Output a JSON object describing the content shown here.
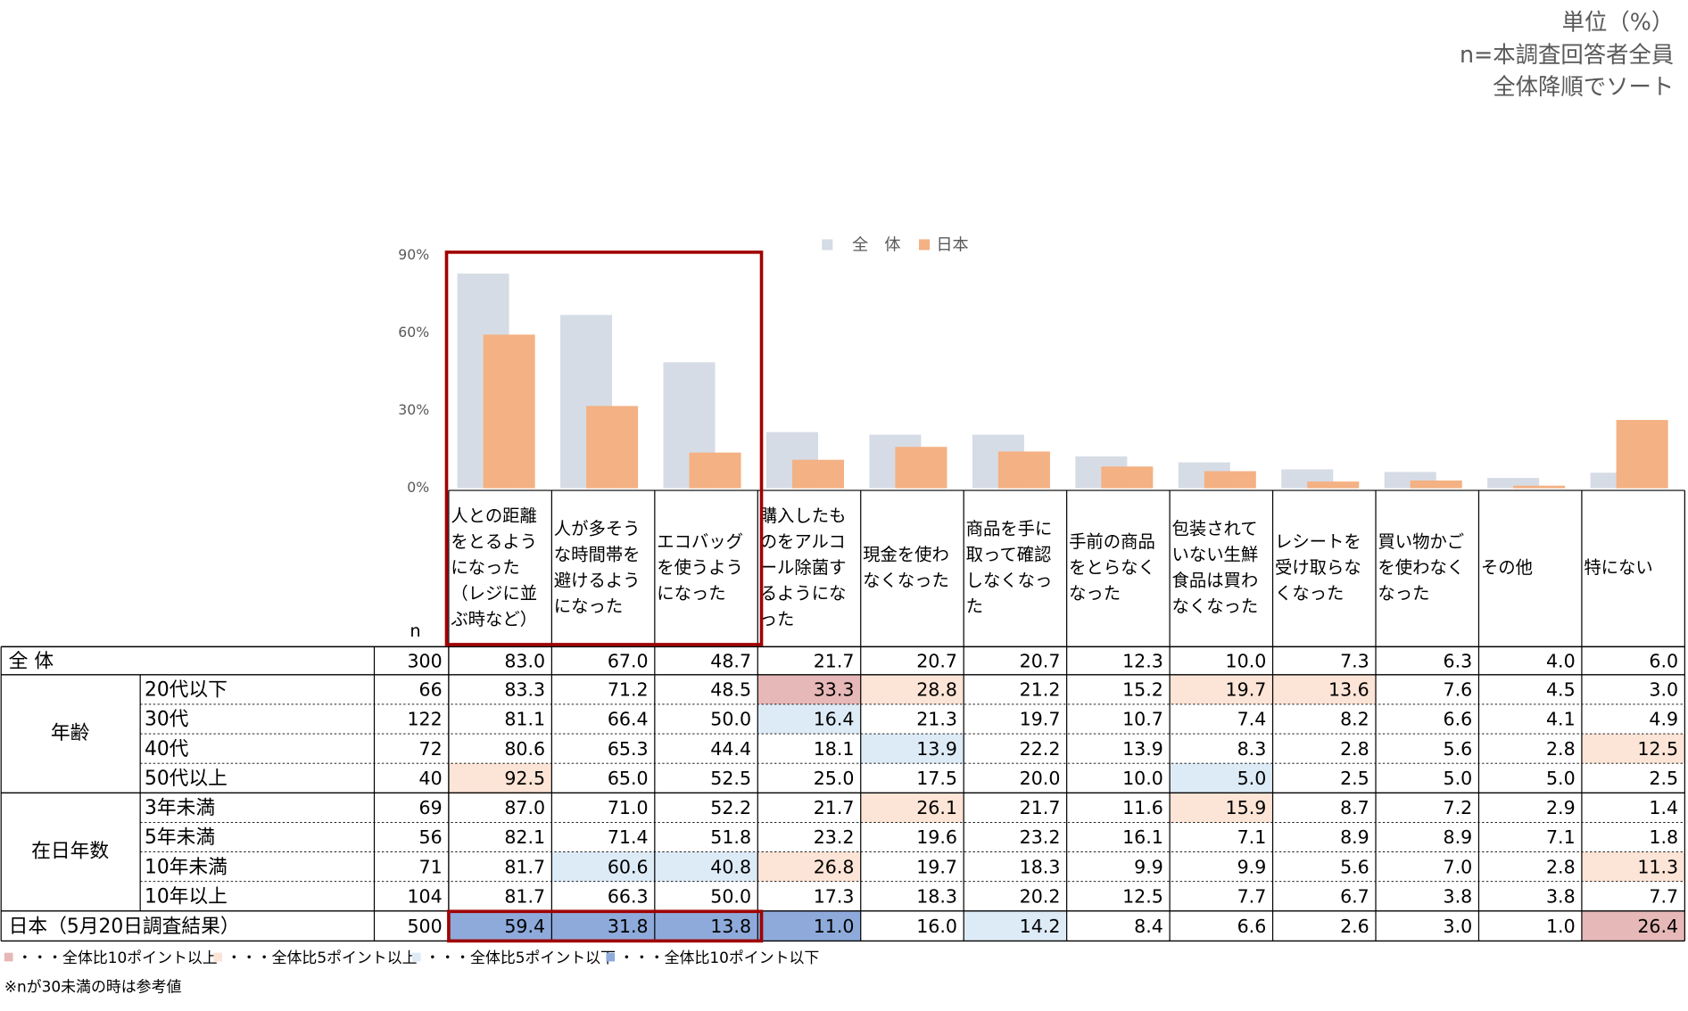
{
  "header": {
    "notes": [
      "単位（%）",
      "n=本調査回答者全員",
      "全体降順でソート"
    ]
  },
  "chart_data": {
    "type": "bar",
    "categories": [
      "人との距離をとるようになった（レジに並ぶ時など）",
      "人が多そうな時間帯を避けるようになった",
      "エコバッグを使うようになった",
      "購入したものをアルコール除菌するようになった",
      "現金を使わなくなった",
      "商品を手に取って確認しなくなった",
      "手前の商品をとらなくなった",
      "包装されていない生鮮食品は買わなくなった",
      "レシートを受け取らなくなった",
      "買い物かごを使わなくなった",
      "その他",
      "特にない"
    ],
    "series": [
      {
        "name": "全　体",
        "color": "#d6dce5",
        "values": [
          83.0,
          67.0,
          48.7,
          21.7,
          20.7,
          20.7,
          12.3,
          10.0,
          7.3,
          6.3,
          4.0,
          6.0
        ]
      },
      {
        "name": "日本",
        "color": "#f4b183",
        "values": [
          59.4,
          31.8,
          13.8,
          11.0,
          16.0,
          14.2,
          8.4,
          6.6,
          2.6,
          3.0,
          1.0,
          26.4
        ]
      }
    ],
    "ylim": [
      0,
      90
    ],
    "yticks": [
      {
        "value": 0,
        "label": "0%"
      },
      {
        "value": 30,
        "label": "30%"
      },
      {
        "value": 60,
        "label": "60%"
      },
      {
        "value": 90,
        "label": "90%"
      }
    ],
    "grid": false,
    "legend": "top"
  },
  "table": {
    "n_header": "n",
    "total": {
      "label": "全 体",
      "n": 300,
      "values": [
        "83.0",
        "67.0",
        "48.7",
        "21.7",
        "20.7",
        "20.7",
        "12.3",
        "10.0",
        "7.3",
        "6.3",
        "4.0",
        "6.0"
      ]
    },
    "groups": [
      {
        "label": "年齢",
        "rows": [
          {
            "label": "20代以下",
            "n": 66,
            "values": [
              "83.3",
              "71.2",
              "48.5",
              "33.3",
              "28.8",
              "21.2",
              "15.2",
              "19.7",
              "13.6",
              "7.6",
              "4.5",
              "3.0"
            ]
          },
          {
            "label": "30代",
            "n": 122,
            "values": [
              "81.1",
              "66.4",
              "50.0",
              "16.4",
              "21.3",
              "19.7",
              "10.7",
              "7.4",
              "8.2",
              "6.6",
              "4.1",
              "4.9"
            ]
          },
          {
            "label": "40代",
            "n": 72,
            "values": [
              "80.6",
              "65.3",
              "44.4",
              "18.1",
              "13.9",
              "22.2",
              "13.9",
              "8.3",
              "2.8",
              "5.6",
              "2.8",
              "12.5"
            ]
          },
          {
            "label": "50代以上",
            "n": 40,
            "values": [
              "92.5",
              "65.0",
              "52.5",
              "25.0",
              "17.5",
              "20.0",
              "10.0",
              "5.0",
              "2.5",
              "5.0",
              "5.0",
              "2.5"
            ]
          }
        ]
      },
      {
        "label": "在日年数",
        "rows": [
          {
            "label": "3年未満",
            "n": 69,
            "values": [
              "87.0",
              "71.0",
              "52.2",
              "21.7",
              "26.1",
              "21.7",
              "11.6",
              "15.9",
              "8.7",
              "7.2",
              "2.9",
              "1.4"
            ]
          },
          {
            "label": "5年未満",
            "n": 56,
            "values": [
              "82.1",
              "71.4",
              "51.8",
              "23.2",
              "19.6",
              "23.2",
              "16.1",
              "7.1",
              "8.9",
              "8.9",
              "7.1",
              "1.8"
            ]
          },
          {
            "label": "10年未満",
            "n": 71,
            "values": [
              "81.7",
              "60.6",
              "40.8",
              "26.8",
              "19.7",
              "18.3",
              "9.9",
              "9.9",
              "5.6",
              "7.0",
              "2.8",
              "11.3"
            ]
          },
          {
            "label": "10年以上",
            "n": 104,
            "values": [
              "81.7",
              "66.3",
              "50.0",
              "17.3",
              "18.3",
              "20.2",
              "12.5",
              "7.7",
              "6.7",
              "3.8",
              "3.8",
              "7.7"
            ]
          }
        ]
      }
    ],
    "japan": {
      "label": "日本（5月20日調査結果）",
      "n": 500,
      "values": [
        "59.4",
        "31.8",
        "13.8",
        "11.0",
        "16.0",
        "14.2",
        "8.4",
        "6.6",
        "2.6",
        "3.0",
        "1.0",
        "26.4"
      ]
    }
  },
  "highlight_legend": [
    {
      "label": "・・・全体比10ポイント以上",
      "threshold": 10,
      "direction": "above",
      "color": "#e6b8b7"
    },
    {
      "label": "・・・全体比5ポイント以上",
      "threshold": 5,
      "direction": "above",
      "color": "#fce4d6"
    },
    {
      "label": "・・・全体比5ポイント以下",
      "threshold": 5,
      "direction": "below",
      "color": "#ddebf7"
    },
    {
      "label": "・・・全体比10ポイント以下",
      "threshold": 10,
      "direction": "below",
      "color": "#8eaadb"
    }
  ],
  "footnote": "※nが30未満の時は参考値"
}
